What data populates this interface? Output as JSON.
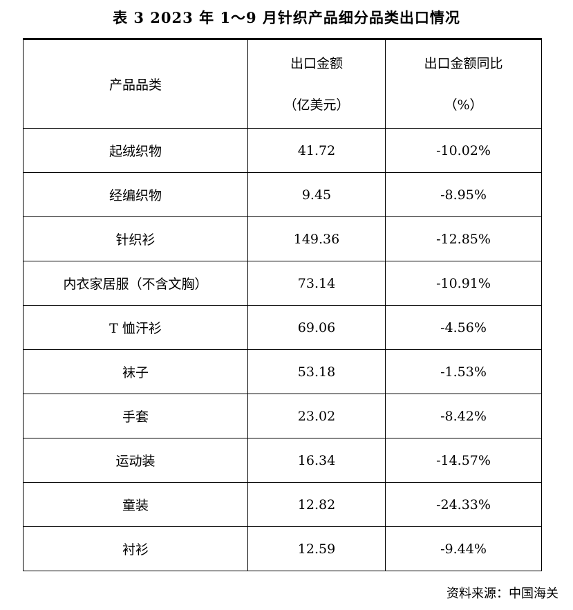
{
  "title": "表 3   2023 年 1～9 月针织产品细分品类出口情况",
  "table": {
    "headers": {
      "category": "产品品类",
      "amount_line1": "出口金额",
      "amount_line2": "（亿美元）",
      "yoy_line1": "出口金额同比",
      "yoy_line2": "（%）"
    },
    "rows": [
      {
        "category": "起绒织物",
        "amount": "41.72",
        "yoy": "-10.02%"
      },
      {
        "category": "经编织物",
        "amount": "9.45",
        "yoy": "-8.95%"
      },
      {
        "category": "针织衫",
        "amount": "149.36",
        "yoy": "-12.85%"
      },
      {
        "category": "内衣家居服（不含文胸）",
        "amount": "73.14",
        "yoy": "-10.91%"
      },
      {
        "category": "T 恤汗衫",
        "amount": "69.06",
        "yoy": "-4.56%"
      },
      {
        "category": "袜子",
        "amount": "53.18",
        "yoy": "-1.53%"
      },
      {
        "category": "手套",
        "amount": "23.02",
        "yoy": "-8.42%"
      },
      {
        "category": "运动装",
        "amount": "16.34",
        "yoy": "-14.57%"
      },
      {
        "category": "童装",
        "amount": "12.82",
        "yoy": "-24.33%"
      },
      {
        "category": "衬衫",
        "amount": "12.59",
        "yoy": "-9.44%"
      }
    ]
  },
  "source": "资料来源：中国海关"
}
